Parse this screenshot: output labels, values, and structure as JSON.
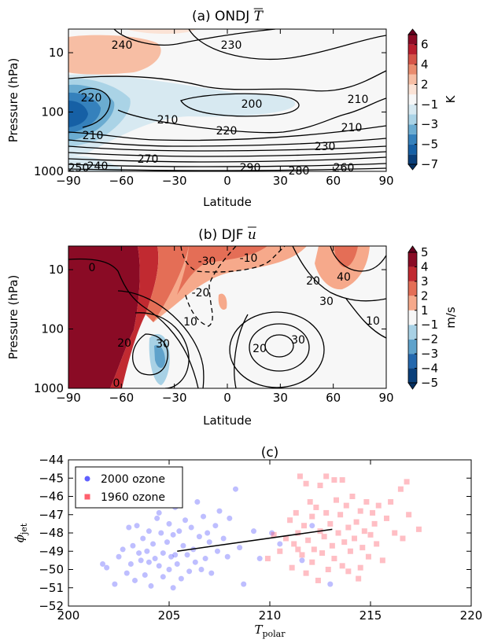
{
  "chart_data": [
    {
      "type": "contour",
      "title": "(a) ONDJ ",
      "title_symbol": "T",
      "xlabel": "Latitude",
      "ylabel": "Pressure (hPa)",
      "xlim": [
        -90,
        90
      ],
      "xticks": [
        {
          "value": -90,
          "label": "−90"
        },
        {
          "value": -60,
          "label": "−60"
        },
        {
          "value": -30,
          "label": "−30"
        },
        0,
        30,
        60,
        90
      ],
      "ylim": [
        1000,
        4
      ],
      "log_y": true,
      "yticks": [
        10,
        100,
        1000
      ],
      "colorbar": {
        "label": "K",
        "boundaries": [
          -7,
          -6,
          -5,
          -4,
          -3,
          -2,
          -1,
          1,
          2,
          3,
          4,
          5,
          6,
          7
        ],
        "colors": [
          "#0a3f7a",
          "#1660a5",
          "#3581bc",
          "#6bacd1",
          "#aad3e6",
          "#d7e9f1",
          "#f7f7f7",
          "#fbe3d6",
          "#f7bea4",
          "#ea8c6e",
          "#d55548",
          "#b91f2e",
          "#8a0b25"
        ],
        "extend_colors": [
          "#053061",
          "#67001f"
        ],
        "ticks": [
          6,
          4,
          2,
          {
            "value": -1,
            "label": "−1"
          },
          {
            "value": -3,
            "label": "−3"
          },
          {
            "value": -5,
            "label": "−5"
          },
          {
            "value": -7,
            "label": "−7"
          }
        ]
      },
      "contour_labels": [
        "240",
        "230",
        "220",
        "200",
        "210",
        "210",
        "220",
        "210",
        "230",
        "210",
        "250",
        "240",
        "270",
        "290",
        "280",
        "260"
      ]
    },
    {
      "type": "contour",
      "title": "(b) DJF ",
      "title_symbol": "u",
      "xlabel": "Latitude",
      "ylabel": "Pressure (hPa)",
      "xlim": [
        -90,
        90
      ],
      "xticks": [
        {
          "value": -90,
          "label": "−90"
        },
        {
          "value": -60,
          "label": "−60"
        },
        {
          "value": -30,
          "label": "−30"
        },
        0,
        30,
        60,
        90
      ],
      "ylim": [
        1000,
        4
      ],
      "log_y": true,
      "yticks": [
        10,
        100,
        1000
      ],
      "colorbar": {
        "label": "m/s",
        "boundaries": [
          -5,
          -4,
          -3,
          -2,
          -1,
          1,
          2,
          3,
          4,
          5
        ],
        "colors": [
          "#0a3f7a",
          "#2468ad",
          "#5fa2cb",
          "#a8d1e5",
          "#f7f7f7",
          "#f6a98b",
          "#e46e56",
          "#c12a31",
          "#8a0b25"
        ],
        "extend_colors": [
          "#053061",
          "#67001f"
        ],
        "ticks": [
          5,
          4,
          3,
          2,
          1,
          {
            "value": -1,
            "label": "−1"
          },
          {
            "value": -2,
            "label": "−2"
          },
          {
            "value": -3,
            "label": "−3"
          },
          {
            "value": -4,
            "label": "−4"
          },
          {
            "value": -5,
            "label": "−5"
          }
        ]
      },
      "contour_labels": [
        "0",
        "-30",
        "-10",
        "-20",
        "10",
        "20",
        "30",
        "20",
        "30",
        "20",
        "40",
        "30",
        "10",
        "0"
      ]
    },
    {
      "type": "scatter",
      "title": "(c)",
      "xlabel": {
        "symbol": "T",
        "subscript": "polar"
      },
      "ylabel": {
        "symbol": "ϕ",
        "subscript": "jet"
      },
      "xlim": [
        200,
        220
      ],
      "xticks": [
        200,
        205,
        210,
        215,
        220
      ],
      "ylim": [
        -52,
        -44
      ],
      "yticks": [
        {
          "value": -44,
          "label": "−44"
        },
        {
          "value": -45,
          "label": "−45"
        },
        {
          "value": -46,
          "label": "−46"
        },
        {
          "value": -47,
          "label": "−47"
        },
        {
          "value": -48,
          "label": "−48"
        },
        {
          "value": -49,
          "label": "−49"
        },
        {
          "value": -50,
          "label": "−50"
        },
        {
          "value": -51,
          "label": "−51"
        },
        {
          "value": -52,
          "label": "−52"
        }
      ],
      "legend": "upper left",
      "series": [
        {
          "name": "2000 ozone",
          "color": "#4444ff",
          "marker": "circle",
          "x": [
            201.7,
            201.9,
            202.3,
            202.5,
            202.7,
            202.9,
            203.1,
            203.2,
            203.3,
            203.4,
            203.5,
            203.6,
            203.7,
            203.8,
            203.9,
            204.0,
            204.1,
            204.2,
            204.3,
            204.4,
            204.5,
            204.5,
            204.6,
            204.7,
            204.7,
            204.8,
            204.9,
            205.0,
            205.0,
            205.1,
            205.2,
            205.2,
            205.3,
            205.4,
            205.5,
            205.6,
            205.7,
            205.8,
            205.9,
            206.0,
            206.1,
            206.2,
            206.3,
            206.4,
            206.5,
            206.6,
            206.7,
            206.8,
            207.0,
            207.1,
            207.3,
            207.4,
            207.5,
            207.7,
            207.9,
            208.0,
            208.3,
            208.5,
            208.7,
            209.2,
            209.5,
            210.1,
            210.5,
            211.6,
            212.1,
            213.0,
            204.0,
            205.3,
            206.9,
            203.0
          ],
          "y": [
            -49.7,
            -49.9,
            -50.8,
            -49.3,
            -48.9,
            -50.2,
            -49.7,
            -48.7,
            -50.6,
            -47.6,
            -49.1,
            -49.5,
            -48.3,
            -50.3,
            -49.0,
            -47.9,
            -50.9,
            -48.6,
            -49.4,
            -47.2,
            -49.8,
            -46.9,
            -48.0,
            -50.4,
            -49.1,
            -46.4,
            -48.5,
            -50.0,
            -47.5,
            -49.3,
            -51.0,
            -48.1,
            -46.6,
            -49.7,
            -47.9,
            -50.5,
            -48.7,
            -47.3,
            -49.2,
            -50.1,
            -47.7,
            -48.9,
            -49.6,
            -46.3,
            -48.2,
            -50.0,
            -47.1,
            -49.4,
            -48.5,
            -50.2,
            -47.6,
            -49.0,
            -46.8,
            -48.3,
            -49.3,
            -47.2,
            -45.6,
            -48.8,
            -50.8,
            -47.9,
            -49.4,
            -48.0,
            -48.6,
            -49.5,
            -47.6,
            -50.8,
            -49.6,
            -49.2,
            -48.0,
            -47.7
          ]
        },
        {
          "name": "1960 ozone",
          "color": "#ff4455",
          "marker": "square",
          "x": [
            209.9,
            210.5,
            210.8,
            211.0,
            211.1,
            211.2,
            211.3,
            211.4,
            211.5,
            211.6,
            211.7,
            211.8,
            211.8,
            211.9,
            212.0,
            212.1,
            212.1,
            212.2,
            212.3,
            212.4,
            212.5,
            212.5,
            212.6,
            212.7,
            212.8,
            212.9,
            213.0,
            213.1,
            213.2,
            213.2,
            213.3,
            213.4,
            213.5,
            213.6,
            213.6,
            213.7,
            213.8,
            213.9,
            214.0,
            214.1,
            214.2,
            214.3,
            214.4,
            214.5,
            214.6,
            214.7,
            214.8,
            214.9,
            215.0,
            215.1,
            215.2,
            215.3,
            215.4,
            215.6,
            215.8,
            216.0,
            216.2,
            216.5,
            216.6,
            216.8,
            216.9,
            217.4,
            210.2,
            212.8,
            213.9,
            211.4,
            214.5
          ],
          "y": [
            -49.4,
            -49.0,
            -48.3,
            -47.3,
            -49.9,
            -48.6,
            -46.9,
            -48.0,
            -44.9,
            -49.2,
            -47.6,
            -50.2,
            -45.3,
            -48.4,
            -46.3,
            -49.6,
            -47.1,
            -48.9,
            -46.6,
            -50.6,
            -47.9,
            -45.4,
            -49.1,
            -48.2,
            -46.9,
            -50.0,
            -47.5,
            -48.7,
            -45.1,
            -49.4,
            -46.2,
            -48.0,
            -47.0,
            -49.8,
            -45.1,
            -48.5,
            -46.5,
            -47.7,
            -49.0,
            -46.0,
            -48.3,
            -47.4,
            -50.5,
            -46.8,
            -48.8,
            -47.9,
            -46.3,
            -49.3,
            -48.1,
            -46.9,
            -47.5,
            -48.6,
            -46.5,
            -49.5,
            -47.2,
            -46.3,
            -48.0,
            -45.6,
            -48.3,
            -45.2,
            -47.0,
            -47.8,
            -48.1,
            -44.9,
            -50.1,
            -48.9,
            -49.9
          ]
        }
      ],
      "fit": {
        "color": "#000000",
        "x": [
          205.4,
          213.1
        ],
        "y": [
          -49.0,
          -47.8
        ]
      }
    }
  ]
}
